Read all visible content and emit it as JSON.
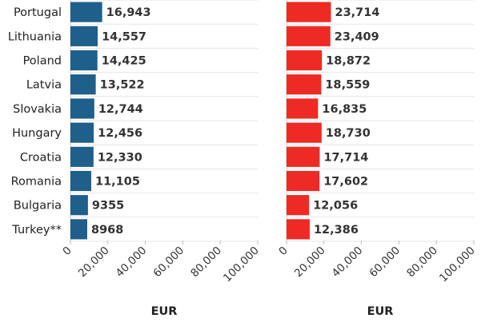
{
  "chart_data": [
    {
      "type": "bar",
      "orientation": "horizontal",
      "categories": [
        "Portugal",
        "Lithuania",
        "Poland",
        "Latvia",
        "Slovakia",
        "Hungary",
        "Croatia",
        "Romania",
        "Bulgaria",
        "Turkey**"
      ],
      "values": [
        16943,
        14557,
        14425,
        13522,
        12744,
        12456,
        12330,
        11105,
        9355,
        8968
      ],
      "value_labels": [
        "16,943",
        "14,557",
        "14,425",
        "13,522",
        "12,744",
        "12,456",
        "12,330",
        "11,105",
        "9355",
        "8968"
      ],
      "xlabel": "EUR",
      "xlim": [
        0,
        100000
      ],
      "xticks": [
        "0",
        "20,000",
        "40,000",
        "60,000",
        "80,000",
        "100,000"
      ],
      "grid": true,
      "color": "#1f5f8b"
    },
    {
      "type": "bar",
      "orientation": "horizontal",
      "categories": [
        "Portugal",
        "Lithuania",
        "Poland",
        "Latvia",
        "Slovakia",
        "Hungary",
        "Croatia",
        "Romania",
        "Bulgaria",
        "Turkey**"
      ],
      "values": [
        23714,
        23409,
        18872,
        18559,
        16835,
        18730,
        17714,
        17602,
        12056,
        12386
      ],
      "value_labels": [
        "23,714",
        "23,409",
        "18,872",
        "18,559",
        "16,835",
        "18,730",
        "17,714",
        "17,602",
        "12,056",
        "12,386"
      ],
      "xlabel": "EUR",
      "xlim": [
        0,
        100000
      ],
      "xticks": [
        "0",
        "20,000",
        "40,000",
        "60,000",
        "80,000",
        "100,000"
      ],
      "grid": true,
      "color": "#ee2a24"
    }
  ]
}
